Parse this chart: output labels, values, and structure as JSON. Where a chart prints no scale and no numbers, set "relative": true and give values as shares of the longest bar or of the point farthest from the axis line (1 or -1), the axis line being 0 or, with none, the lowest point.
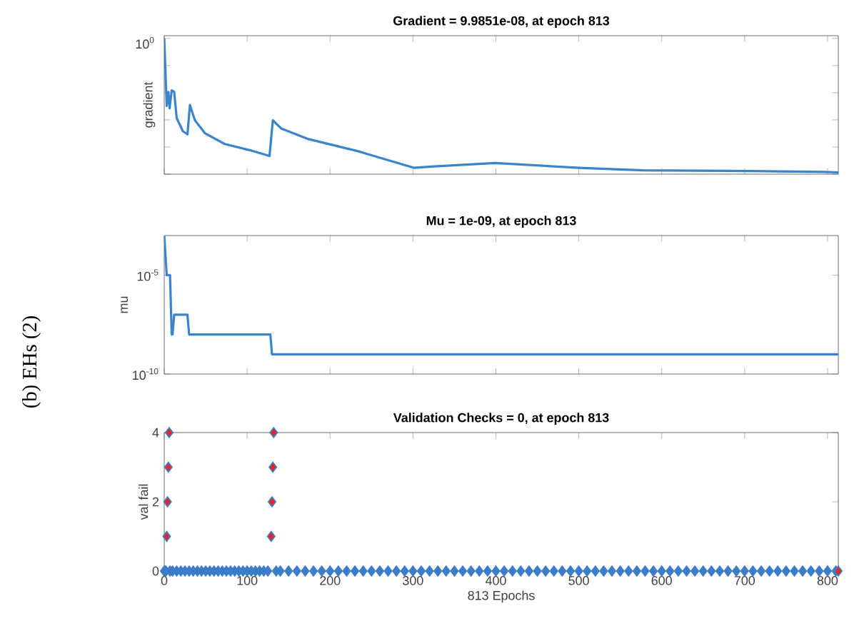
{
  "chart_data": [
    {
      "type": "line",
      "title": "Gradient = 9.9851e-08, at epoch 813",
      "ylabel": "gradient",
      "relative": true,
      "annotations": [
        "10$^{0}$"
      ],
      "xlim": [
        0,
        813
      ],
      "xticks": [
        0,
        100,
        200,
        300,
        400,
        500,
        600,
        700,
        800
      ],
      "tick_labels": "y",
      "series": [
        {
          "color": "#3b84cc",
          "x": [
            0,
            3,
            5,
            6.5,
            9,
            12,
            15,
            22.5,
            28,
            31,
            37,
            49,
            73,
            103,
            127,
            131,
            141,
            174,
            233,
            301,
            322,
            399,
            500,
            577,
            707,
            796,
            813
          ],
          "values": [
            1,
            0.503,
            0.606,
            0.486,
            0.617,
            0.606,
            0.413,
            0.317,
            0.293,
            0.509,
            0.397,
            0.302,
            0.222,
            0.177,
            0.134,
            0.397,
            0.337,
            0.258,
            0.17,
            0.047,
            0.056,
            0.082,
            0.047,
            0.028,
            0.023,
            0.016,
            0.013
          ]
        }
      ]
    },
    {
      "type": "line",
      "title": "Mu = 1e-09, at epoch 813",
      "ylabel": "mu",
      "log": "y",
      "xlim": [
        0,
        813
      ],
      "xticks": [
        0,
        100,
        200,
        300,
        400,
        500,
        600,
        700,
        800
      ],
      "ylim": [
        1e-10,
        0.001
      ],
      "yticks": [
        {
          "value": 1e-10,
          "label": "10$^{-10}$"
        },
        {
          "value": 1e-05,
          "label": "10$^{-5}$"
        }
      ],
      "tick_labels": "y",
      "annotations": [
        "(b) EHs (2)"
      ],
      "series": [
        {
          "color": "#3b84cc",
          "x": [
            0,
            3,
            7,
            9,
            10,
            12,
            28,
            30,
            128,
            130,
            813
          ],
          "values": [
            0.001,
            1e-05,
            1e-05,
            1e-08,
            1e-08,
            1e-07,
            1e-07,
            1e-08,
            1e-08,
            1e-09,
            1e-09
          ]
        }
      ]
    },
    {
      "type": "scatter",
      "title": "Validation Checks = 0, at epoch 813",
      "ylabel": "val fail",
      "xlabel": "813 Epochs",
      "marker": "diamond",
      "xlim": [
        0,
        813
      ],
      "xticks": [
        0,
        100,
        200,
        300,
        400,
        500,
        600,
        700,
        800
      ],
      "ylim": [
        0,
        4
      ],
      "yticks": [
        0,
        2,
        4
      ],
      "series": [
        {
          "color": "#3b7dc8",
          "x": [
            0,
            1,
            2,
            3,
            4,
            5,
            6,
            7,
            10,
            15,
            20,
            25,
            30,
            35,
            40,
            45,
            50,
            55,
            60,
            65,
            70,
            75,
            80,
            85,
            90,
            95,
            100,
            105,
            110,
            115,
            120,
            125,
            129,
            130,
            131,
            132,
            135,
            140,
            150,
            160,
            170,
            180,
            190,
            200,
            210,
            220,
            230,
            240,
            250,
            260,
            270,
            280,
            290,
            300,
            310,
            320,
            330,
            340,
            350,
            360,
            370,
            380,
            390,
            400,
            410,
            420,
            430,
            440,
            450,
            460,
            470,
            480,
            490,
            500,
            510,
            520,
            530,
            540,
            550,
            560,
            570,
            580,
            590,
            600,
            610,
            620,
            630,
            640,
            650,
            660,
            670,
            680,
            690,
            700,
            710,
            720,
            730,
            740,
            750,
            760,
            770,
            780,
            790,
            800,
            810,
            813
          ],
          "values": [
            0,
            0,
            0,
            1,
            2,
            3,
            4,
            0,
            0,
            0,
            0,
            0,
            0,
            0,
            0,
            0,
            0,
            0,
            0,
            0,
            0,
            0,
            0,
            0,
            0,
            0,
            0,
            0,
            0,
            0,
            0,
            0,
            1,
            2,
            3,
            4,
            0,
            0,
            0,
            0,
            0,
            0,
            0,
            0,
            0,
            0,
            0,
            0,
            0,
            0,
            0,
            0,
            0,
            0,
            0,
            0,
            0,
            0,
            0,
            0,
            0,
            0,
            0,
            0,
            0,
            0,
            0,
            0,
            0,
            0,
            0,
            0,
            0,
            0,
            0,
            0,
            0,
            0,
            0,
            0,
            0,
            0,
            0,
            0,
            0,
            0,
            0,
            0,
            0,
            0,
            0,
            0,
            0,
            0,
            0,
            0,
            0,
            0,
            0,
            0,
            0,
            0,
            0,
            0,
            0,
            0
          ],
          "colors": [
            "#3b7dc8",
            "#3b7dc8",
            "#3b7dc8",
            "#e8261f",
            "#e8261f",
            "#e8261f",
            "#e8261f",
            "#3b7dc8",
            "#3b7dc8",
            "#3b7dc8",
            "#3b7dc8",
            "#3b7dc8",
            "#3b7dc8",
            "#3b7dc8",
            "#3b7dc8",
            "#3b7dc8",
            "#3b7dc8",
            "#3b7dc8",
            "#3b7dc8",
            "#3b7dc8",
            "#3b7dc8",
            "#3b7dc8",
            "#3b7dc8",
            "#3b7dc8",
            "#3b7dc8",
            "#3b7dc8",
            "#3b7dc8",
            "#3b7dc8",
            "#3b7dc8",
            "#3b7dc8",
            "#3b7dc8",
            "#3b7dc8",
            "#e8261f",
            "#e8261f",
            "#e8261f",
            "#e8261f",
            "#3b7dc8",
            "#3b7dc8",
            "#3b7dc8",
            "#3b7dc8",
            "#3b7dc8",
            "#3b7dc8",
            "#3b7dc8",
            "#3b7dc8",
            "#3b7dc8",
            "#3b7dc8",
            "#3b7dc8",
            "#3b7dc8",
            "#3b7dc8",
            "#3b7dc8",
            "#3b7dc8",
            "#3b7dc8",
            "#3b7dc8",
            "#3b7dc8",
            "#3b7dc8",
            "#3b7dc8",
            "#3b7dc8",
            "#3b7dc8",
            "#3b7dc8",
            "#3b7dc8",
            "#3b7dc8",
            "#3b7dc8",
            "#3b7dc8",
            "#3b7dc8",
            "#3b7dc8",
            "#3b7dc8",
            "#3b7dc8",
            "#3b7dc8",
            "#3b7dc8",
            "#3b7dc8",
            "#3b7dc8",
            "#3b7dc8",
            "#3b7dc8",
            "#3b7dc8",
            "#3b7dc8",
            "#3b7dc8",
            "#3b7dc8",
            "#3b7dc8",
            "#3b7dc8",
            "#3b7dc8",
            "#3b7dc8",
            "#3b7dc8",
            "#3b7dc8",
            "#3b7dc8",
            "#3b7dc8",
            "#3b7dc8",
            "#3b7dc8",
            "#3b7dc8",
            "#3b7dc8",
            "#3b7dc8",
            "#3b7dc8",
            "#3b7dc8",
            "#3b7dc8",
            "#3b7dc8",
            "#3b7dc8",
            "#3b7dc8",
            "#3b7dc8",
            "#3b7dc8",
            "#3b7dc8",
            "#3b7dc8",
            "#3b7dc8",
            "#3b7dc8",
            "#3b7dc8",
            "#3b7dc8",
            "#3b7dc8",
            "#e8261f"
          ]
        }
      ]
    }
  ]
}
